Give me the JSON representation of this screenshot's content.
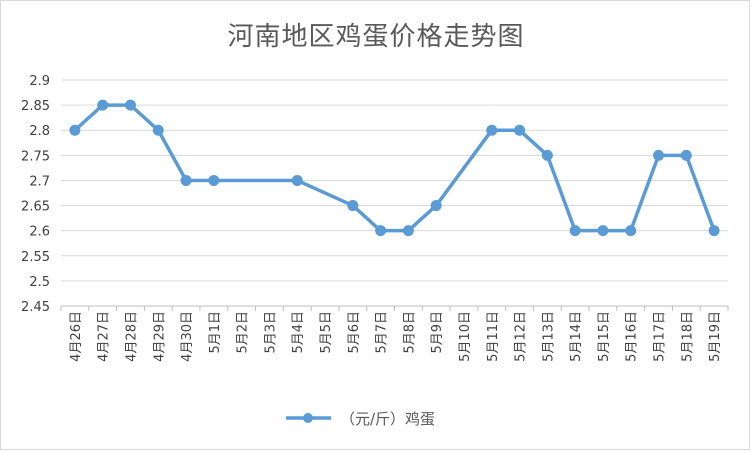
{
  "chart_data": {
    "type": "line",
    "title": "河南地区鸡蛋价格走势图",
    "categories": [
      "4月26日",
      "4月27日",
      "4月28日",
      "4月29日",
      "4月30日",
      "5月1日",
      "5月2日",
      "5月3日",
      "5月4日",
      "5月5日",
      "5月6日",
      "5月7日",
      "5月8日",
      "5月9日",
      "5月10日",
      "5月11日",
      "5月12日",
      "5月13日",
      "5月14日",
      "5月15日",
      "5月16日",
      "5月17日",
      "5月18日",
      "5月19日"
    ],
    "series": [
      {
        "name": "（元/斤）鸡蛋",
        "values": [
          2.8,
          2.85,
          2.85,
          2.8,
          2.7,
          2.7,
          null,
          null,
          2.7,
          null,
          2.65,
          2.6,
          2.6,
          2.65,
          null,
          2.8,
          2.8,
          2.75,
          2.6,
          2.6,
          2.6,
          2.75,
          2.75,
          2.6
        ],
        "color": "#5b9bd5"
      }
    ],
    "yticks": [
      "2.45",
      "2.5",
      "2.55",
      "2.6",
      "2.65",
      "2.7",
      "2.75",
      "2.8",
      "2.85",
      "2.9"
    ],
    "ylim": [
      2.45,
      2.9
    ],
    "grid": true,
    "legend_position": "bottom"
  }
}
